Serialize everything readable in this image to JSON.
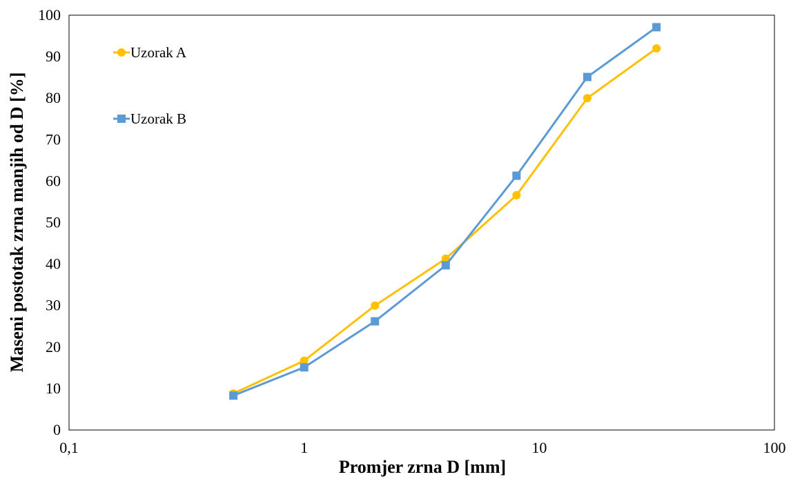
{
  "chart_data": {
    "type": "line",
    "title": "",
    "xlabel": "Promjer zrna D [mm]",
    "ylabel": "Maseni postotak zrna manjih od D [%]",
    "x_scale": "log",
    "xlim": [
      0.1,
      100
    ],
    "ylim": [
      0,
      100
    ],
    "x_ticks": [
      0.1,
      1,
      10,
      100
    ],
    "x_tick_labels": [
      "0,1",
      "1",
      "10",
      "100"
    ],
    "y_ticks": [
      0,
      10,
      20,
      30,
      40,
      50,
      60,
      70,
      80,
      90,
      100
    ],
    "y_tick_labels": [
      "0",
      "10",
      "20",
      "30",
      "40",
      "50",
      "60",
      "70",
      "80",
      "90",
      "100"
    ],
    "grid": false,
    "legend_position": "top-left",
    "x": [
      0.5,
      1,
      2,
      4,
      8,
      16,
      31.5
    ],
    "series": [
      {
        "name": "Uzorak A",
        "values": [
          8.8,
          16.7,
          30.0,
          41.3,
          56.6,
          80.0,
          92.0
        ],
        "color": "#FFC000",
        "marker": "circle"
      },
      {
        "name": "Uzorak B",
        "values": [
          8.3,
          15.1,
          26.2,
          39.7,
          61.3,
          85.1,
          97.1
        ],
        "color": "#5B9BD5",
        "marker": "square"
      }
    ]
  }
}
